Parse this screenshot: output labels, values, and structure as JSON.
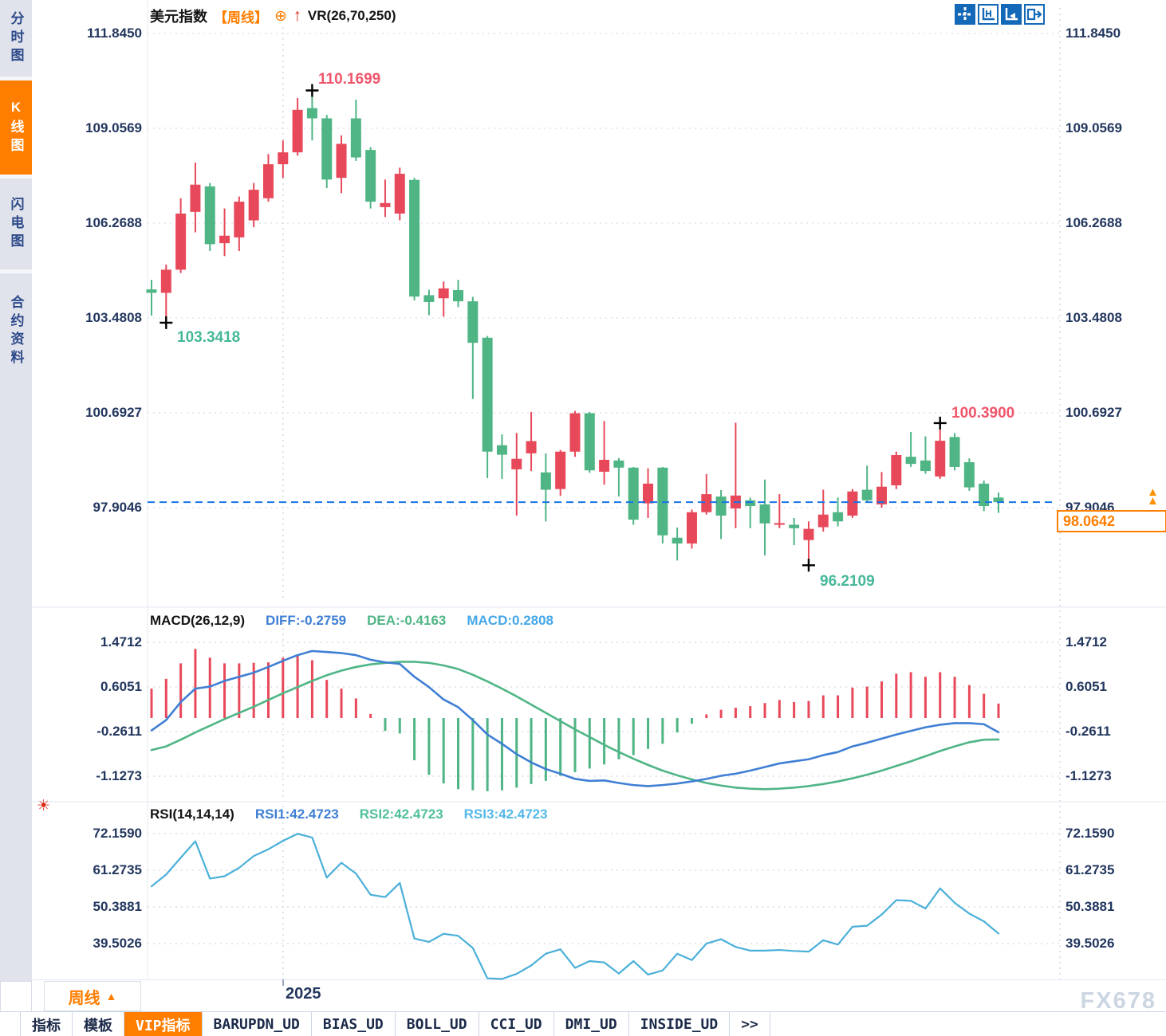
{
  "window": {
    "watermark": "FX678"
  },
  "sidebar": {
    "items": [
      {
        "label": "分时图",
        "active": false
      },
      {
        "label": "K线图",
        "active": true
      },
      {
        "label": "闪电图",
        "active": false
      },
      {
        "label": "合约资料",
        "active": false
      }
    ]
  },
  "header": {
    "title": "美元指数",
    "period_tag": "【周线】",
    "plus_icon": "⊕",
    "arrow_icon": "↑",
    "overlay_indicator": "VR(26,70,250)"
  },
  "toolbar_icons": [
    {
      "name": "crosshair-pan-icon",
      "style": "solid"
    },
    {
      "name": "axis-range-icon",
      "style": "outline"
    },
    {
      "name": "axis-scale-icon",
      "style": "solid"
    },
    {
      "name": "panel-export-icon",
      "style": "outline"
    }
  ],
  "price_axis": {
    "labels": [
      "111.8450",
      "109.0569",
      "106.2688",
      "103.4808",
      "100.6927",
      "97.9046"
    ],
    "values": [
      111.845,
      109.0569,
      106.2688,
      103.4808,
      100.6927,
      97.9046
    ]
  },
  "annotations": {
    "high1": "110.1699",
    "low1": "103.3418",
    "high2": "100.3900",
    "low2": "96.2109",
    "last_price": "98.0642"
  },
  "macd": {
    "title": "MACD(26,12,9)",
    "diff_label": "DIFF:-0.2759",
    "dea_label": "DEA:-0.4163",
    "macd_label": "MACD:0.2808",
    "axis_labels": [
      "1.4712",
      "0.6051",
      "-0.2611",
      "-1.1273"
    ],
    "axis_values": [
      1.4712,
      0.6051,
      -0.2611,
      -1.1273
    ]
  },
  "rsi": {
    "title": "RSI(14,14,14)",
    "rsi1_label": "RSI1:42.4723",
    "rsi2_label": "RSI2:42.4723",
    "rsi3_label": "RSI3:42.4723",
    "axis_labels": [
      "72.1590",
      "61.2735",
      "50.3881",
      "39.5026"
    ],
    "axis_values": [
      72.159,
      61.2735,
      50.3881,
      39.5026
    ]
  },
  "bottom": {
    "period": "周线",
    "triangle": "▲",
    "year": "2025",
    "tabs": [
      {
        "label": "指标",
        "active": false
      },
      {
        "label": "模板",
        "active": false
      },
      {
        "label": "VIP指标",
        "active": true
      },
      {
        "label": "BARUPDN_UD",
        "active": false
      },
      {
        "label": "BIAS_UD",
        "active": false
      },
      {
        "label": "BOLL_UD",
        "active": false
      },
      {
        "label": "CCI_UD",
        "active": false
      },
      {
        "label": "DMI_UD",
        "active": false
      },
      {
        "label": "INSIDE_UD",
        "active": false
      },
      {
        "label": ">>",
        "active": false
      }
    ]
  },
  "colors": {
    "up": "#e8495a",
    "down": "#4fb585",
    "diff_line": "#3f7fd4",
    "dea_line": "#4fb585",
    "rsi_line": "#4ab0d9",
    "dashed_line": "#1673e6",
    "accent": "#ff7e00",
    "axis_text": "#22365e",
    "grid": "#e9eaf0"
  },
  "chart_data": {
    "type": "candlestick-with-indicators",
    "symbol": "美元指数",
    "interval": "周线",
    "price_range": [
      111.845,
      97.9046
    ],
    "marked_high": 110.1699,
    "marked_low": 96.2109,
    "segment_low": 103.3418,
    "segment_high": 100.39,
    "last_price": 98.0642,
    "candles_ohlc": [
      [
        104.32,
        104.6,
        103.55,
        104.22
      ],
      [
        104.22,
        105.05,
        103.3418,
        104.9
      ],
      [
        104.9,
        107.0,
        104.8,
        106.55
      ],
      [
        106.6,
        108.05,
        106.0,
        107.4
      ],
      [
        107.35,
        107.45,
        105.45,
        105.65
      ],
      [
        105.68,
        106.7,
        105.3,
        105.9
      ],
      [
        105.85,
        107.05,
        105.45,
        106.9
      ],
      [
        106.35,
        107.45,
        106.15,
        107.25
      ],
      [
        107.0,
        108.3,
        106.9,
        108.0
      ],
      [
        108.0,
        108.7,
        107.6,
        108.35
      ],
      [
        108.35,
        109.95,
        108.25,
        109.6
      ],
      [
        109.65,
        110.1699,
        108.7,
        109.35
      ],
      [
        109.35,
        109.45,
        107.3,
        107.55
      ],
      [
        107.6,
        108.85,
        107.15,
        108.6
      ],
      [
        109.35,
        109.9,
        108.1,
        108.2
      ],
      [
        108.42,
        108.5,
        106.7,
        106.9
      ],
      [
        106.74,
        107.55,
        106.45,
        106.86
      ],
      [
        106.55,
        107.9,
        106.35,
        107.72
      ],
      [
        107.54,
        107.6,
        104.0,
        104.11
      ],
      [
        104.15,
        104.31,
        103.56,
        103.95
      ],
      [
        104.06,
        104.55,
        103.52,
        104.35
      ],
      [
        104.3,
        104.6,
        103.8,
        103.97
      ],
      [
        103.97,
        104.1,
        101.1,
        102.75
      ],
      [
        102.9,
        102.95,
        98.77,
        99.55
      ],
      [
        99.74,
        100.06,
        98.75,
        99.46
      ],
      [
        99.03,
        100.1,
        97.67,
        99.34
      ],
      [
        99.5,
        100.72,
        98.98,
        99.86
      ],
      [
        98.94,
        99.5,
        97.5,
        98.43
      ],
      [
        98.45,
        99.6,
        98.25,
        99.55
      ],
      [
        99.55,
        100.75,
        99.4,
        100.68
      ],
      [
        100.68,
        100.72,
        98.93,
        99.0
      ],
      [
        98.96,
        100.45,
        98.58,
        99.31
      ],
      [
        99.29,
        99.36,
        98.23,
        99.08
      ],
      [
        99.08,
        99.1,
        97.4,
        97.55
      ],
      [
        98.03,
        99.06,
        97.6,
        98.61
      ],
      [
        99.08,
        99.1,
        96.85,
        97.09
      ],
      [
        97.02,
        97.32,
        96.35,
        96.85
      ],
      [
        96.85,
        97.85,
        96.7,
        97.77
      ],
      [
        97.77,
        98.89,
        97.7,
        98.3
      ],
      [
        98.23,
        98.42,
        96.98,
        97.67
      ],
      [
        97.88,
        100.4,
        97.3,
        98.26
      ],
      [
        98.12,
        98.2,
        97.3,
        97.95
      ],
      [
        98.0,
        98.73,
        96.5,
        97.44
      ],
      [
        97.4,
        98.3,
        97.3,
        97.45
      ],
      [
        97.4,
        97.6,
        96.8,
        97.3
      ],
      [
        96.95,
        97.5,
        96.2109,
        97.28
      ],
      [
        97.33,
        98.43,
        97.2,
        97.7
      ],
      [
        97.77,
        98.2,
        97.35,
        97.5
      ],
      [
        97.67,
        98.45,
        97.6,
        98.38
      ],
      [
        98.43,
        99.14,
        98.05,
        98.12
      ],
      [
        98.0,
        98.95,
        97.9,
        98.52
      ],
      [
        98.56,
        99.55,
        98.45,
        99.45
      ],
      [
        99.4,
        100.13,
        99.1,
        99.19
      ],
      [
        99.29,
        100.0,
        98.9,
        98.98
      ],
      [
        98.82,
        100.39,
        98.75,
        99.87
      ],
      [
        99.98,
        100.1,
        99.0,
        99.1
      ],
      [
        99.24,
        99.35,
        98.4,
        98.5
      ],
      [
        98.61,
        98.7,
        97.8,
        97.95
      ],
      [
        98.2,
        98.35,
        97.75,
        98.0642
      ]
    ],
    "macd_histogram": [
      0.57,
      0.76,
      1.06,
      1.34,
      1.17,
      1.06,
      1.06,
      1.07,
      1.08,
      1.17,
      1.21,
      1.12,
      0.74,
      0.57,
      0.38,
      0.08,
      -0.25,
      -0.3,
      -0.82,
      -1.1,
      -1.27,
      -1.38,
      -1.4,
      -1.42,
      -1.4,
      -1.35,
      -1.28,
      -1.22,
      -1.12,
      -1.05,
      -0.98,
      -0.9,
      -0.8,
      -0.72,
      -0.6,
      -0.5,
      -0.28,
      -0.11,
      0.07,
      0.16,
      0.2,
      0.23,
      0.29,
      0.35,
      0.31,
      0.33,
      0.44,
      0.44,
      0.59,
      0.61,
      0.71,
      0.86,
      0.89,
      0.8,
      0.89,
      0.8,
      0.64,
      0.47,
      0.2808
    ],
    "diff_line": [
      -0.24,
      -0.04,
      0.31,
      0.57,
      0.61,
      0.72,
      0.8,
      0.88,
      0.99,
      1.11,
      1.22,
      1.3,
      1.28,
      1.26,
      1.22,
      1.13,
      1.08,
      1.05,
      0.8,
      0.6,
      0.36,
      0.21,
      -0.04,
      -0.32,
      -0.5,
      -0.7,
      -0.86,
      -0.99,
      -1.08,
      -1.18,
      -1.22,
      -1.21,
      -1.26,
      -1.3,
      -1.32,
      -1.3,
      -1.27,
      -1.23,
      -1.18,
      -1.12,
      -1.08,
      -1.02,
      -0.95,
      -0.88,
      -0.84,
      -0.8,
      -0.72,
      -0.66,
      -0.55,
      -0.48,
      -0.4,
      -0.32,
      -0.25,
      -0.18,
      -0.13,
      -0.1,
      -0.1,
      -0.12,
      -0.2759
    ],
    "dea_line": [
      -0.62,
      -0.55,
      -0.42,
      -0.28,
      -0.15,
      -0.02,
      0.1,
      0.22,
      0.35,
      0.48,
      0.6,
      0.72,
      0.83,
      0.92,
      0.99,
      1.04,
      1.07,
      1.09,
      1.09,
      1.07,
      1.02,
      0.95,
      0.84,
      0.71,
      0.57,
      0.42,
      0.26,
      0.1,
      -0.06,
      -0.22,
      -0.37,
      -0.52,
      -0.66,
      -0.79,
      -0.91,
      -1.02,
      -1.11,
      -1.19,
      -1.26,
      -1.31,
      -1.35,
      -1.37,
      -1.38,
      -1.37,
      -1.35,
      -1.32,
      -1.28,
      -1.23,
      -1.17,
      -1.1,
      -1.02,
      -0.93,
      -0.84,
      -0.74,
      -0.64,
      -0.55,
      -0.47,
      -0.42,
      -0.4163
    ],
    "rsi_line": [
      56.5,
      60.0,
      65.0,
      69.9,
      58.8,
      59.5,
      62.0,
      65.5,
      67.5,
      70.0,
      72.1,
      71.0,
      59.1,
      63.5,
      60.3,
      54.0,
      53.3,
      57.5,
      41.0,
      40.0,
      42.4,
      41.8,
      38.2,
      29.2,
      29.0,
      30.5,
      33.0,
      36.5,
      37.8,
      32.3,
      34.3,
      33.9,
      30.6,
      34.3,
      30.3,
      31.5,
      36.5,
      34.6,
      39.5,
      40.8,
      38.5,
      37.4,
      37.4,
      37.6,
      37.3,
      37.1,
      40.5,
      39.2,
      44.5,
      44.8,
      48.1,
      52.4,
      52.2,
      49.9,
      55.9,
      51.6,
      48.4,
      46.1,
      42.4723
    ],
    "x_axis_year": "2025"
  }
}
